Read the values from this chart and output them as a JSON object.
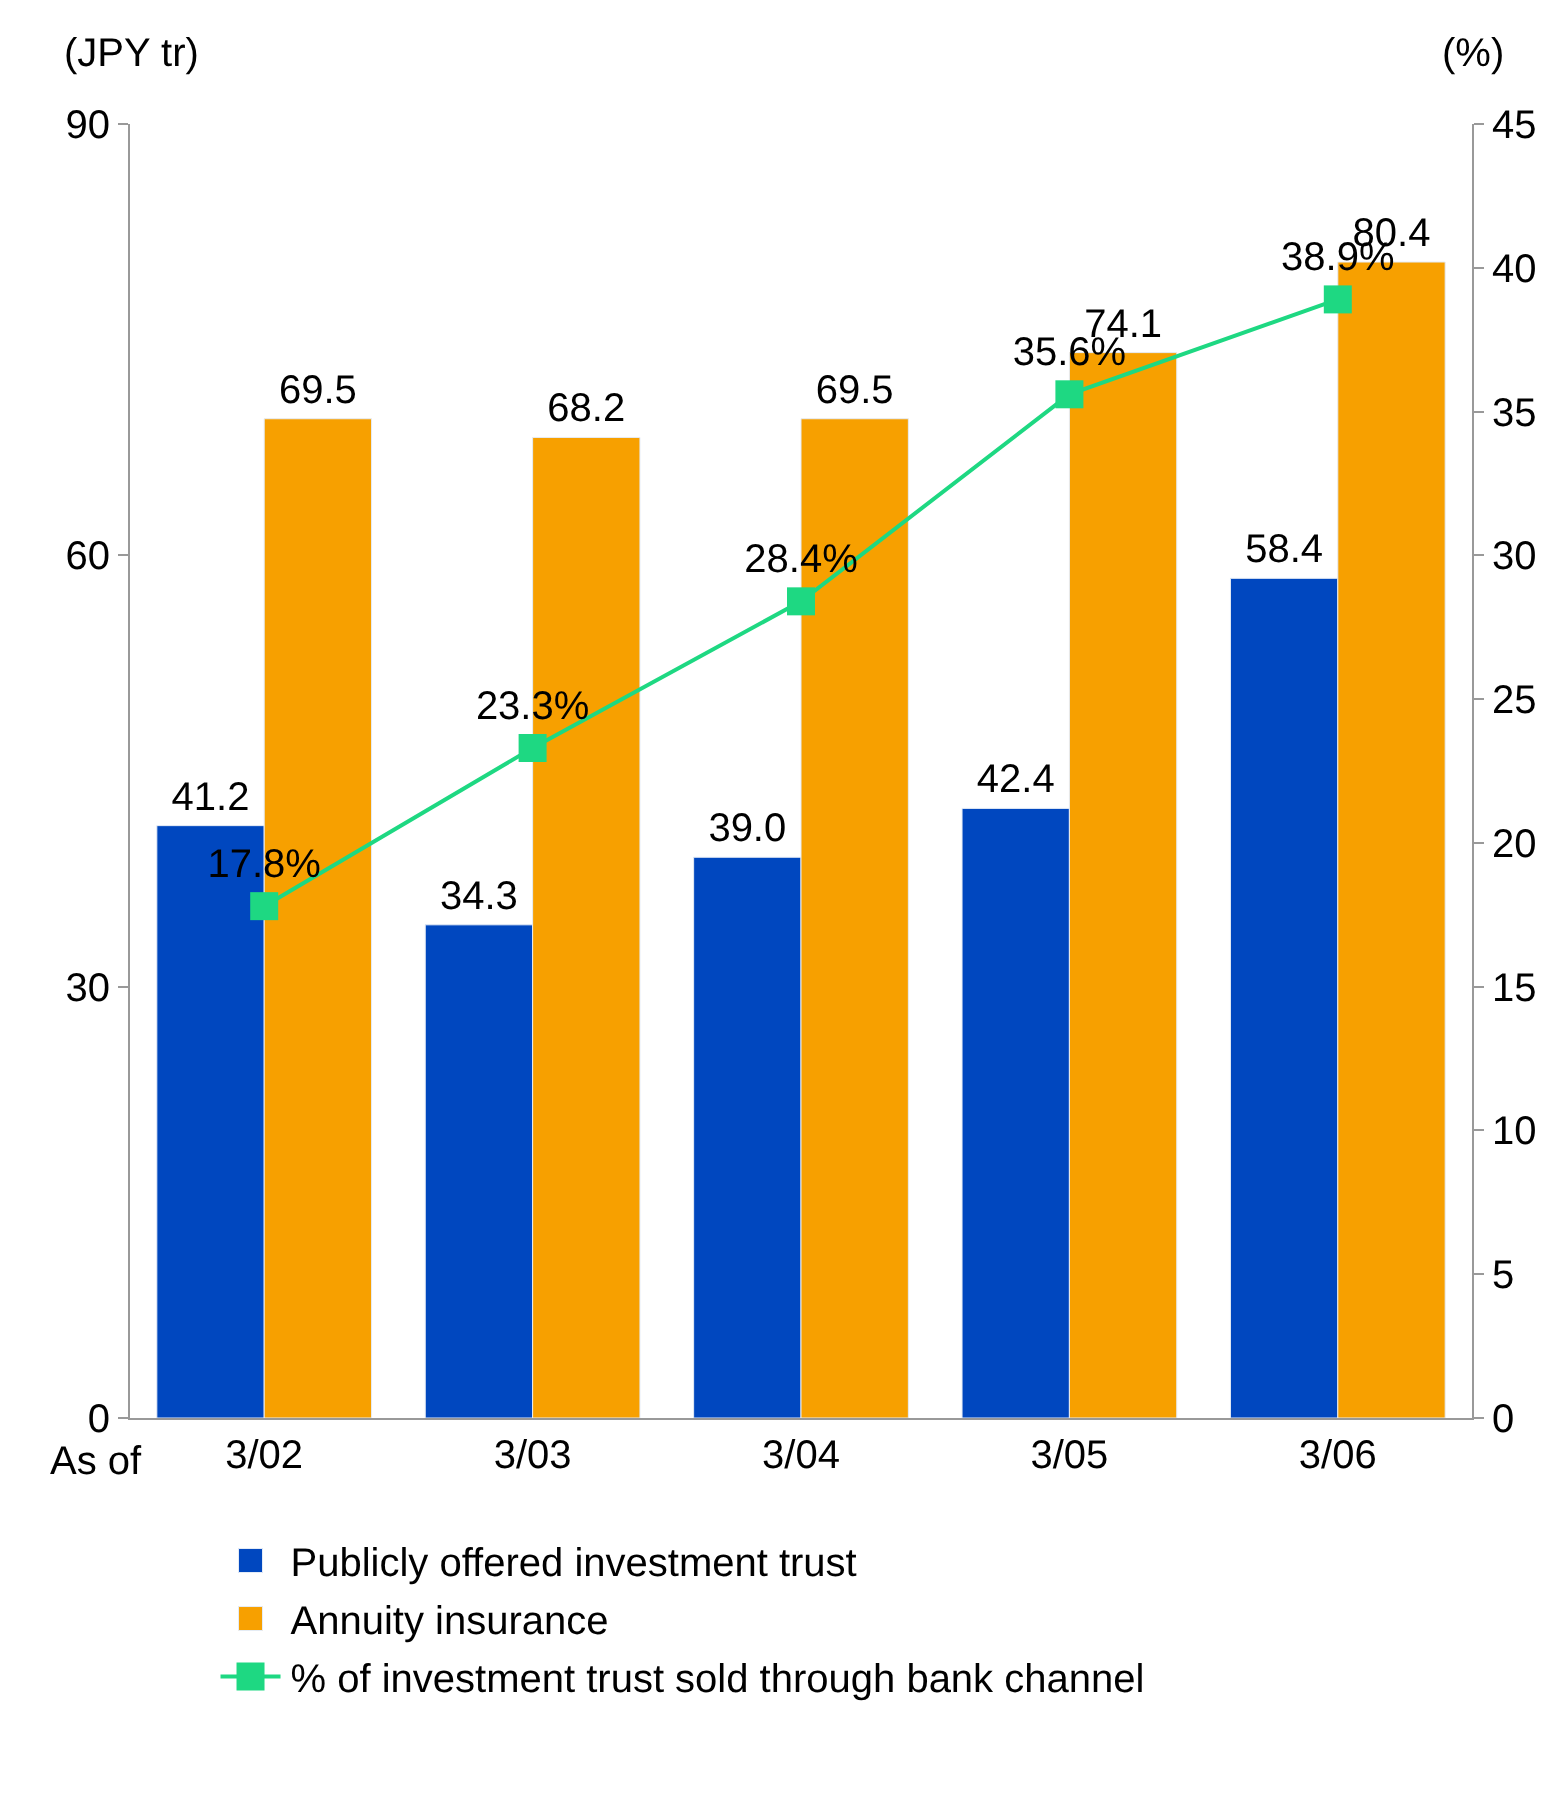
{
  "chart_data": {
    "type": "bar",
    "ylabel": "(JPY tr)",
    "y2label": "(%)",
    "categories": [
      "3/02",
      "3/03",
      "3/04",
      "3/05",
      "3/06"
    ],
    "series": [
      {
        "name": "Publicly offered investment trust",
        "color": "#0047bf",
        "values": [
          41.2,
          34.3,
          39.0,
          42.4,
          58.4
        ],
        "value_labels": [
          "41.2",
          "34.3",
          "39.0",
          "42.4",
          "58.4"
        ]
      },
      {
        "name": "Annuity insurance",
        "color": "#f7a000",
        "values": [
          69.5,
          68.2,
          69.5,
          74.1,
          80.4
        ],
        "value_labels": [
          "69.5",
          "68.2",
          "69.5",
          "74.1",
          "80.4"
        ]
      },
      {
        "name": "% of investment trust sold through bank channel",
        "type": "line",
        "axis": "y2",
        "marker": "square",
        "color": "#1ed882",
        "values": [
          17.8,
          23.3,
          28.4,
          35.6,
          38.9
        ],
        "value_labels": [
          "17.8%",
          "23.3%",
          "28.4%",
          "35.6%",
          "38.9%"
        ]
      }
    ],
    "ylim": [
      0,
      90
    ],
    "yticks": [
      0,
      30,
      60,
      90
    ],
    "y2lim": [
      0,
      45
    ],
    "y2ticks": [
      0,
      5,
      10,
      15,
      20,
      25,
      30,
      35,
      40,
      45
    ],
    "annotations": [
      "As of"
    ],
    "legend": "bottom"
  }
}
